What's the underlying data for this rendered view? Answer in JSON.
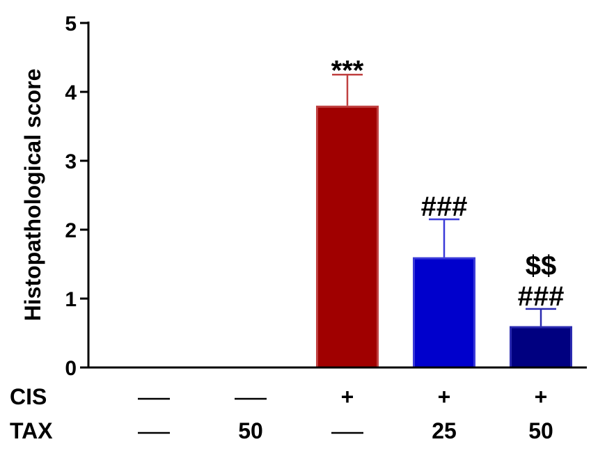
{
  "chart_data": {
    "type": "bar",
    "title": "",
    "xlabel": "",
    "ylabel": "Histopathological score",
    "ylim": [
      0,
      5
    ],
    "yticks": [
      "0",
      "1",
      "2",
      "3",
      "4",
      "5"
    ],
    "grid": false,
    "legend": "none",
    "bars": [
      {
        "value": 0,
        "error": 0,
        "annotation": [],
        "color": "#ffffff",
        "border": "#ffffff"
      },
      {
        "value": 0,
        "error": 0,
        "annotation": [],
        "color": "#ffffff",
        "border": "#ffffff"
      },
      {
        "value": 3.8,
        "error": 0.45,
        "annotation": [
          "***"
        ],
        "color": "#a00000",
        "border": "#c04040"
      },
      {
        "value": 1.6,
        "error": 0.55,
        "annotation": [
          "###"
        ],
        "color": "#0000cc",
        "border": "#3a3ad8"
      },
      {
        "value": 0.6,
        "error": 0.25,
        "annotation": [
          "$$",
          "###"
        ],
        "color": "#000080",
        "border": "#2a2ab0"
      }
    ],
    "treatment_rows": [
      {
        "label": "CIS",
        "values": [
          "—",
          "—",
          "+",
          "+",
          "+"
        ]
      },
      {
        "label": "TAX",
        "values": [
          "—",
          "50",
          "—",
          "25",
          "50"
        ]
      }
    ]
  }
}
